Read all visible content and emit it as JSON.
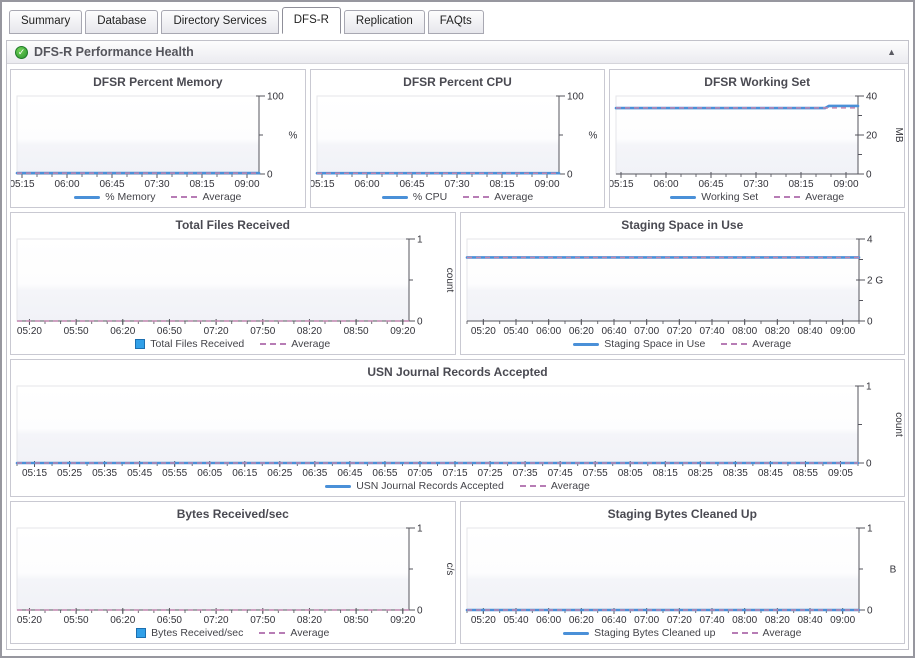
{
  "tabs": {
    "items": [
      {
        "label": "Summary",
        "active": false
      },
      {
        "label": "Database",
        "active": false
      },
      {
        "label": "Directory Services",
        "active": false
      },
      {
        "label": "DFS-R",
        "active": true
      },
      {
        "label": "Replication",
        "active": false
      },
      {
        "label": "FAQts",
        "active": false
      }
    ]
  },
  "section": {
    "title": "DFS-R Performance Health",
    "status_icon": "green-check",
    "status_glyph": "✓",
    "collapse_glyph": "▲"
  },
  "colors": {
    "series_blue": "#4a90d8",
    "average_dash": "#c084ae",
    "axis": "#55555d",
    "bar_swatch_blue": "#31a0e8"
  },
  "chart_data": [
    {
      "type": "line",
      "title": "DFSR Percent Memory",
      "x": {
        "min": 310,
        "max": 552,
        "minor_step": 15,
        "major_ticks": [
          {
            "t": 315,
            "label": "05:15"
          },
          {
            "t": 360,
            "label": "06:00"
          },
          {
            "t": 405,
            "label": "06:45"
          },
          {
            "t": 450,
            "label": "07:30"
          },
          {
            "t": 495,
            "label": "08:15"
          },
          {
            "t": 540,
            "label": "09:00"
          }
        ]
      },
      "y": {
        "min": 0,
        "max": 100,
        "unit": "%",
        "unit_rotated": false,
        "ticks": [
          {
            "v": 0,
            "label": "0"
          },
          {
            "v": 50,
            "label": ""
          },
          {
            "v": 100,
            "label": "100"
          }
        ]
      },
      "series": [
        {
          "name": "% Memory",
          "style": "line",
          "points": [
            [
              310,
              1.2
            ],
            [
              552,
              1.2
            ]
          ]
        }
      ],
      "average": {
        "name": "Average",
        "value": 1.2
      },
      "legend": [
        {
          "swatch": "line",
          "label": "% Memory"
        },
        {
          "swatch": "dash",
          "label": "Average"
        }
      ]
    },
    {
      "type": "line",
      "title": "DFSR Percent CPU",
      "x": {
        "min": 310,
        "max": 552,
        "minor_step": 15,
        "major_ticks": [
          {
            "t": 315,
            "label": "05:15"
          },
          {
            "t": 360,
            "label": "06:00"
          },
          {
            "t": 405,
            "label": "06:45"
          },
          {
            "t": 450,
            "label": "07:30"
          },
          {
            "t": 495,
            "label": "08:15"
          },
          {
            "t": 540,
            "label": "09:00"
          }
        ]
      },
      "y": {
        "min": 0,
        "max": 100,
        "unit": "%",
        "unit_rotated": false,
        "ticks": [
          {
            "v": 0,
            "label": "0"
          },
          {
            "v": 50,
            "label": ""
          },
          {
            "v": 100,
            "label": "100"
          }
        ]
      },
      "series": [
        {
          "name": "% CPU",
          "style": "line",
          "points": [
            [
              310,
              1.0
            ],
            [
              552,
              1.0
            ]
          ]
        }
      ],
      "average": {
        "name": "Average",
        "value": 1.0
      },
      "legend": [
        {
          "swatch": "line",
          "label": "% CPU"
        },
        {
          "swatch": "dash",
          "label": "Average"
        }
      ]
    },
    {
      "type": "line",
      "title": "DFSR Working Set",
      "x": {
        "min": 310,
        "max": 552,
        "minor_step": 15,
        "major_ticks": [
          {
            "t": 315,
            "label": "05:15"
          },
          {
            "t": 360,
            "label": "06:00"
          },
          {
            "t": 405,
            "label": "06:45"
          },
          {
            "t": 450,
            "label": "07:30"
          },
          {
            "t": 495,
            "label": "08:15"
          },
          {
            "t": 540,
            "label": "09:00"
          }
        ]
      },
      "y": {
        "min": 0,
        "max": 40,
        "unit": "MB",
        "unit_rotated": true,
        "ticks": [
          {
            "v": 0,
            "label": "0"
          },
          {
            "v": 10,
            "label": ""
          },
          {
            "v": 20,
            "label": "20"
          },
          {
            "v": 30,
            "label": ""
          },
          {
            "v": 40,
            "label": "40"
          }
        ]
      },
      "series": [
        {
          "name": "Working Set",
          "style": "line",
          "points": [
            [
              310,
              33.8
            ],
            [
              519,
              33.8
            ],
            [
              523,
              34.9
            ],
            [
              552,
              34.9
            ]
          ]
        }
      ],
      "average": {
        "name": "Average",
        "value": 33.9
      },
      "legend": [
        {
          "swatch": "line",
          "label": "Working Set"
        },
        {
          "swatch": "dash",
          "label": "Average"
        }
      ]
    },
    {
      "type": "bar",
      "title": "Total Files Received",
      "x": {
        "min": 312,
        "max": 564,
        "minor_step": 10,
        "major_ticks": [
          {
            "t": 320,
            "label": "05:20"
          },
          {
            "t": 350,
            "label": "05:50"
          },
          {
            "t": 380,
            "label": "06:20"
          },
          {
            "t": 410,
            "label": "06:50"
          },
          {
            "t": 440,
            "label": "07:20"
          },
          {
            "t": 470,
            "label": "07:50"
          },
          {
            "t": 500,
            "label": "08:20"
          },
          {
            "t": 530,
            "label": "08:50"
          },
          {
            "t": 560,
            "label": "09:20"
          }
        ]
      },
      "y": {
        "min": 0,
        "max": 1,
        "unit": "count",
        "unit_rotated": true,
        "ticks": [
          {
            "v": 0,
            "label": "0"
          },
          {
            "v": 0.5,
            "label": ""
          },
          {
            "v": 1,
            "label": "1"
          }
        ]
      },
      "series": [
        {
          "name": "Total Files Received",
          "style": "bar",
          "points": []
        }
      ],
      "average": {
        "name": "Average",
        "value": 0
      },
      "legend": [
        {
          "swatch": "square",
          "label": "Total Files Received"
        },
        {
          "swatch": "dash",
          "label": "Average"
        }
      ]
    },
    {
      "type": "line",
      "title": "Staging Space in Use",
      "x": {
        "min": 310,
        "max": 550,
        "minor_step": 10,
        "major_ticks": [
          {
            "t": 320,
            "label": "05:20"
          },
          {
            "t": 340,
            "label": "05:40"
          },
          {
            "t": 360,
            "label": "06:00"
          },
          {
            "t": 380,
            "label": "06:20"
          },
          {
            "t": 400,
            "label": "06:40"
          },
          {
            "t": 420,
            "label": "07:00"
          },
          {
            "t": 440,
            "label": "07:20"
          },
          {
            "t": 460,
            "label": "07:40"
          },
          {
            "t": 480,
            "label": "08:00"
          },
          {
            "t": 500,
            "label": "08:20"
          },
          {
            "t": 520,
            "label": "08:40"
          },
          {
            "t": 540,
            "label": "09:00"
          }
        ]
      },
      "y": {
        "min": 0,
        "max": 4,
        "unit": "",
        "unit_rotated": false,
        "ticks": [
          {
            "v": 0,
            "label": "0"
          },
          {
            "v": 1,
            "label": ""
          },
          {
            "v": 2,
            "label": "2 G"
          },
          {
            "v": 3,
            "label": ""
          },
          {
            "v": 4,
            "label": "4"
          }
        ]
      },
      "series": [
        {
          "name": "Staging Space in Use",
          "style": "line",
          "points": [
            [
              310,
              3.1
            ],
            [
              550,
              3.1
            ]
          ]
        }
      ],
      "average": {
        "name": "Average",
        "value": 3.1
      },
      "legend": [
        {
          "swatch": "line",
          "label": "Staging Space in Use"
        },
        {
          "swatch": "dash",
          "label": "Average"
        }
      ]
    },
    {
      "type": "line",
      "title": "USN Journal Records Accepted",
      "x": {
        "min": 310,
        "max": 550,
        "minor_step": 5,
        "major_ticks": [
          {
            "t": 315,
            "label": "05:15"
          },
          {
            "t": 325,
            "label": "05:25"
          },
          {
            "t": 335,
            "label": "05:35"
          },
          {
            "t": 345,
            "label": "05:45"
          },
          {
            "t": 355,
            "label": "05:55"
          },
          {
            "t": 365,
            "label": "06:05"
          },
          {
            "t": 375,
            "label": "06:15"
          },
          {
            "t": 385,
            "label": "06:25"
          },
          {
            "t": 395,
            "label": "06:35"
          },
          {
            "t": 405,
            "label": "06:45"
          },
          {
            "t": 415,
            "label": "06:55"
          },
          {
            "t": 425,
            "label": "07:05"
          },
          {
            "t": 435,
            "label": "07:15"
          },
          {
            "t": 445,
            "label": "07:25"
          },
          {
            "t": 455,
            "label": "07:35"
          },
          {
            "t": 465,
            "label": "07:45"
          },
          {
            "t": 475,
            "label": "07:55"
          },
          {
            "t": 485,
            "label": "08:05"
          },
          {
            "t": 495,
            "label": "08:15"
          },
          {
            "t": 505,
            "label": "08:25"
          },
          {
            "t": 515,
            "label": "08:35"
          },
          {
            "t": 525,
            "label": "08:45"
          },
          {
            "t": 535,
            "label": "08:55"
          },
          {
            "t": 545,
            "label": "09:05"
          }
        ]
      },
      "y": {
        "min": 0,
        "max": 1,
        "unit": "count",
        "unit_rotated": true,
        "ticks": [
          {
            "v": 0,
            "label": "0"
          },
          {
            "v": 0.5,
            "label": ""
          },
          {
            "v": 1,
            "label": "1"
          }
        ]
      },
      "series": [
        {
          "name": "USN Journal Records Accepted",
          "style": "line",
          "points": [
            [
              310,
              0
            ],
            [
              550,
              0
            ]
          ]
        }
      ],
      "average": {
        "name": "Average",
        "value": 0
      },
      "legend": [
        {
          "swatch": "line",
          "label": "USN Journal Records Accepted"
        },
        {
          "swatch": "dash",
          "label": "Average"
        }
      ]
    },
    {
      "type": "bar",
      "title": "Bytes Received/sec",
      "x": {
        "min": 312,
        "max": 564,
        "minor_step": 10,
        "major_ticks": [
          {
            "t": 320,
            "label": "05:20"
          },
          {
            "t": 350,
            "label": "05:50"
          },
          {
            "t": 380,
            "label": "06:20"
          },
          {
            "t": 410,
            "label": "06:50"
          },
          {
            "t": 440,
            "label": "07:20"
          },
          {
            "t": 470,
            "label": "07:50"
          },
          {
            "t": 500,
            "label": "08:20"
          },
          {
            "t": 530,
            "label": "08:50"
          },
          {
            "t": 560,
            "label": "09:20"
          }
        ]
      },
      "y": {
        "min": 0,
        "max": 1,
        "unit": "c/s",
        "unit_rotated": true,
        "ticks": [
          {
            "v": 0,
            "label": "0"
          },
          {
            "v": 0.5,
            "label": ""
          },
          {
            "v": 1,
            "label": "1"
          }
        ]
      },
      "series": [
        {
          "name": "Bytes Received/sec",
          "style": "bar",
          "points": []
        }
      ],
      "average": {
        "name": "Average",
        "value": 0
      },
      "legend": [
        {
          "swatch": "square",
          "label": "Bytes Received/sec"
        },
        {
          "swatch": "dash",
          "label": "Average"
        }
      ]
    },
    {
      "type": "line",
      "title": "Staging Bytes Cleaned Up",
      "x": {
        "min": 310,
        "max": 550,
        "minor_step": 10,
        "major_ticks": [
          {
            "t": 320,
            "label": "05:20"
          },
          {
            "t": 340,
            "label": "05:40"
          },
          {
            "t": 360,
            "label": "06:00"
          },
          {
            "t": 380,
            "label": "06:20"
          },
          {
            "t": 400,
            "label": "06:40"
          },
          {
            "t": 420,
            "label": "07:00"
          },
          {
            "t": 440,
            "label": "07:20"
          },
          {
            "t": 460,
            "label": "07:40"
          },
          {
            "t": 480,
            "label": "08:00"
          },
          {
            "t": 500,
            "label": "08:20"
          },
          {
            "t": 520,
            "label": "08:40"
          },
          {
            "t": 540,
            "label": "09:00"
          }
        ]
      },
      "y": {
        "min": 0,
        "max": 1,
        "unit": "B",
        "unit_rotated": false,
        "ticks": [
          {
            "v": 0,
            "label": "0"
          },
          {
            "v": 0.5,
            "label": ""
          },
          {
            "v": 1,
            "label": "1"
          }
        ]
      },
      "series": [
        {
          "name": "Staging Bytes Cleaned up",
          "style": "line",
          "points": [
            [
              310,
              0
            ],
            [
              550,
              0
            ]
          ]
        }
      ],
      "average": {
        "name": "Average",
        "value": 0
      },
      "legend": [
        {
          "swatch": "line",
          "label": "Staging Bytes Cleaned up"
        },
        {
          "swatch": "dash",
          "label": "Average"
        }
      ]
    }
  ]
}
